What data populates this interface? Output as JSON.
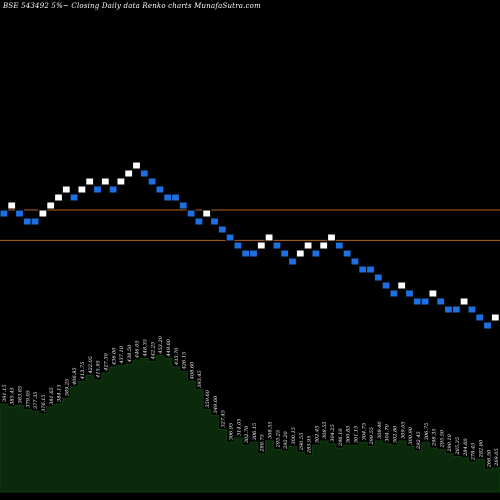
{
  "title": "BSE 543492  5%~  Closing Daily data  Renko  charts MunafaSutra.com",
  "colors": {
    "background": "#000000",
    "up_brick": "#ffffff",
    "down_brick": "#1e6fe0",
    "brick_border": "#000000",
    "level_line": "#b5651d",
    "volume_area": "#0b2a0b",
    "volume_top": "#0f3a0f",
    "label_text": "#ffffff"
  },
  "chart_data": {
    "type": "renko",
    "x_axis": "brick sequence (daily closes)",
    "y_axis": "price",
    "price_range": [
      190,
      410
    ],
    "bricks": [
      {
        "dir": "down",
        "level": 1
      },
      {
        "dir": "up",
        "level": 2
      },
      {
        "dir": "down",
        "level": 1
      },
      {
        "dir": "down",
        "level": 0
      },
      {
        "dir": "down",
        "level": 0
      },
      {
        "dir": "up",
        "level": 1
      },
      {
        "dir": "up",
        "level": 2
      },
      {
        "dir": "up",
        "level": 3
      },
      {
        "dir": "up",
        "level": 4
      },
      {
        "dir": "down",
        "level": 3
      },
      {
        "dir": "up",
        "level": 4
      },
      {
        "dir": "up",
        "level": 5
      },
      {
        "dir": "down",
        "level": 4
      },
      {
        "dir": "up",
        "level": 5
      },
      {
        "dir": "down",
        "level": 4
      },
      {
        "dir": "up",
        "level": 5
      },
      {
        "dir": "up",
        "level": 6
      },
      {
        "dir": "up",
        "level": 7
      },
      {
        "dir": "down",
        "level": 6
      },
      {
        "dir": "down",
        "level": 5
      },
      {
        "dir": "down",
        "level": 4
      },
      {
        "dir": "down",
        "level": 3
      },
      {
        "dir": "down",
        "level": 3
      },
      {
        "dir": "down",
        "level": 2
      },
      {
        "dir": "down",
        "level": 1
      },
      {
        "dir": "down",
        "level": 0
      },
      {
        "dir": "up",
        "level": 1
      },
      {
        "dir": "down",
        "level": 0
      },
      {
        "dir": "down",
        "level": -1
      },
      {
        "dir": "down",
        "level": -2
      },
      {
        "dir": "down",
        "level": -3
      },
      {
        "dir": "down",
        "level": -4
      },
      {
        "dir": "down",
        "level": -4
      },
      {
        "dir": "up",
        "level": -3
      },
      {
        "dir": "up",
        "level": -2
      },
      {
        "dir": "down",
        "level": -3
      },
      {
        "dir": "down",
        "level": -4
      },
      {
        "dir": "down",
        "level": -5
      },
      {
        "dir": "up",
        "level": -4
      },
      {
        "dir": "up",
        "level": -3
      },
      {
        "dir": "down",
        "level": -4
      },
      {
        "dir": "up",
        "level": -3
      },
      {
        "dir": "up",
        "level": -2
      },
      {
        "dir": "down",
        "level": -3
      },
      {
        "dir": "down",
        "level": -4
      },
      {
        "dir": "down",
        "level": -5
      },
      {
        "dir": "down",
        "level": -6
      },
      {
        "dir": "down",
        "level": -6
      },
      {
        "dir": "down",
        "level": -7
      },
      {
        "dir": "down",
        "level": -8
      },
      {
        "dir": "down",
        "level": -9
      },
      {
        "dir": "up",
        "level": -8
      },
      {
        "dir": "down",
        "level": -9
      },
      {
        "dir": "down",
        "level": -10
      },
      {
        "dir": "down",
        "level": -10
      },
      {
        "dir": "up",
        "level": -9
      },
      {
        "dir": "down",
        "level": -10
      },
      {
        "dir": "down",
        "level": -11
      },
      {
        "dir": "down",
        "level": -11
      },
      {
        "dir": "up",
        "level": -10
      },
      {
        "dir": "down",
        "level": -11
      },
      {
        "dir": "down",
        "level": -12
      },
      {
        "dir": "down",
        "level": -13
      },
      {
        "dir": "up",
        "level": -12
      }
    ],
    "reference_levels": [
      {
        "name": "upper",
        "level": 1
      },
      {
        "name": "lower",
        "level": -2.8
      }
    ],
    "volume_labels": [
      "391.15",
      "385.45",
      "383.85",
      "379.05",
      "377.35",
      "376.15",
      "381.65",
      "384.15",
      "389.25",
      "406.85",
      "413.75",
      "422.05",
      "415.95",
      "427.30",
      "436.00",
      "437.10",
      "438.50",
      "446.05",
      "448.35",
      "442.25",
      "453.20",
      "449.60",
      "433.70",
      "426.15",
      "408.60",
      "393.45",
      "359.60",
      "349.60",
      "327.45",
      "306.95",
      "314.05",
      "302.70",
      "306.15",
      "288.75",
      "308.55",
      "295.25",
      "292.20",
      "300.15",
      "290.55",
      "285.95",
      "302.45",
      "308.55",
      "304.25",
      "296.10",
      "300.85",
      "301.15",
      "304.75",
      "299.55",
      "308.40",
      "304.70",
      "302.80",
      "309.05",
      "300.90",
      "292.45",
      "306.75",
      "298.35",
      "295.50",
      "290.10",
      "285.35",
      "284.60",
      "278.45",
      "282.80",
      "266.50",
      "269.05"
    ],
    "volume_heights": [
      0.62,
      0.6,
      0.61,
      0.58,
      0.57,
      0.55,
      0.6,
      0.62,
      0.66,
      0.74,
      0.78,
      0.82,
      0.79,
      0.84,
      0.88,
      0.89,
      0.9,
      0.93,
      0.94,
      0.92,
      0.96,
      0.94,
      0.88,
      0.85,
      0.78,
      0.72,
      0.58,
      0.54,
      0.44,
      0.35,
      0.38,
      0.33,
      0.35,
      0.27,
      0.36,
      0.3,
      0.29,
      0.32,
      0.28,
      0.26,
      0.33,
      0.36,
      0.34,
      0.31,
      0.33,
      0.33,
      0.35,
      0.32,
      0.36,
      0.34,
      0.33,
      0.36,
      0.32,
      0.29,
      0.35,
      0.31,
      0.3,
      0.27,
      0.25,
      0.24,
      0.21,
      0.23,
      0.16,
      0.17
    ]
  }
}
